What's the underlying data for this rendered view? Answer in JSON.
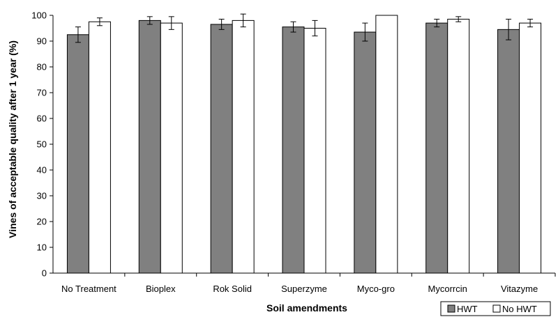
{
  "chart_data": {
    "type": "bar",
    "title": "",
    "xlabel": "Soil amendments",
    "ylabel": "Vines of acceptable quality after 1 year (%)",
    "ylim": [
      0,
      100
    ],
    "yticks": [
      0,
      10,
      20,
      30,
      40,
      50,
      60,
      70,
      80,
      90,
      100
    ],
    "grid": false,
    "legend_position": "bottom-right",
    "categories": [
      "No Treatment",
      "Bioplex",
      "Rok Solid",
      "Superzyme",
      "Myco-gro",
      "Mycorrcin",
      "Vitazyme"
    ],
    "series": [
      {
        "name": "HWT",
        "color": "#808080",
        "values": [
          92.5,
          98,
          96.5,
          95.5,
          93.5,
          97,
          94.5
        ],
        "errors": [
          3,
          1.5,
          2,
          2,
          3.5,
          1.5,
          4
        ]
      },
      {
        "name": "No HWT",
        "color": "#ffffff",
        "values": [
          97.5,
          97,
          98,
          95,
          100,
          98.5,
          97
        ],
        "errors": [
          1.5,
          2.5,
          2.5,
          3,
          0,
          1,
          1.5
        ]
      }
    ]
  }
}
